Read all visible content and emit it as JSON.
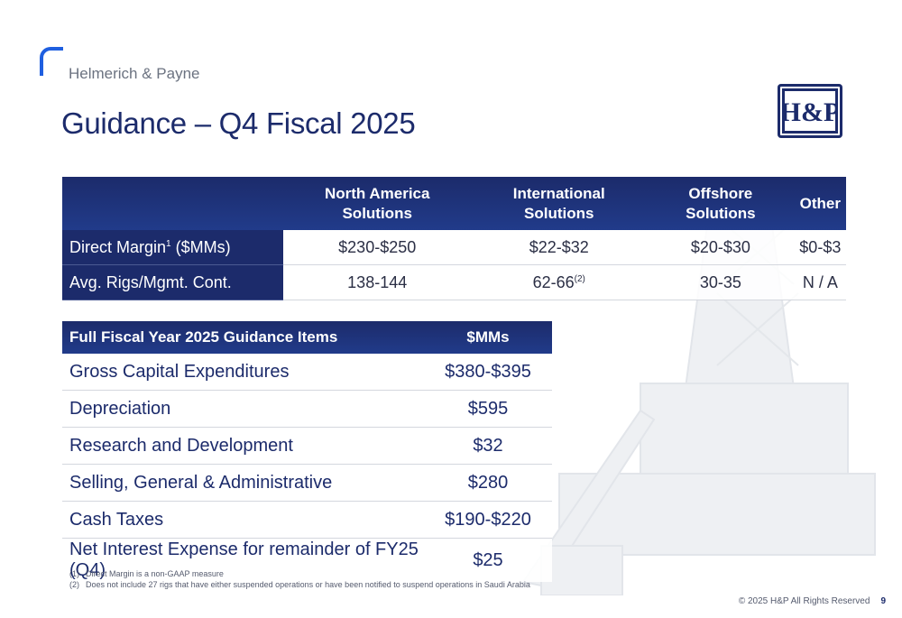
{
  "header": {
    "company": "Helmerich & Payne",
    "title": "Guidance – Q4 Fiscal 2025"
  },
  "logo": {
    "text": "H&P"
  },
  "segment_table": {
    "columns": [
      "North America Solutions",
      "International Solutions",
      "Offshore Solutions",
      "Other"
    ],
    "rows": [
      {
        "label": "Direct Margin",
        "label_sup": "1",
        "label_suffix": " ($MMs)",
        "values": [
          "$230-$250",
          "$22-$32",
          "$20-$30",
          "$0-$3"
        ]
      },
      {
        "label": "Avg. Rigs/Mgmt. Cont.",
        "values": [
          "138-144",
          "62-66",
          "30-35",
          "N / A"
        ],
        "intl_sup": "(2)"
      }
    ]
  },
  "fy_table": {
    "header_item": "Full Fiscal Year 2025 Guidance Items",
    "header_amount": "$MMs",
    "rows": [
      {
        "item": "Gross Capital Expenditures",
        "amount": "$380-$395"
      },
      {
        "item": "Depreciation",
        "amount": "$595"
      },
      {
        "item": "Research and Development",
        "amount": "$32"
      },
      {
        "item": "Selling, General & Administrative",
        "amount": "$280"
      },
      {
        "item": "Cash Taxes",
        "amount": "$190-$220"
      },
      {
        "item": "Net Interest Expense for remainder of FY25 (Q4)",
        "amount": "$25"
      }
    ]
  },
  "footnotes": [
    {
      "num": "(1)",
      "text": "Direct Margin is a non-GAAP measure"
    },
    {
      "num": "(2)",
      "text": "Does not include 27 rigs that have either suspended operations or have been notified to suspend operations in Saudi Arabia"
    }
  ],
  "footer": {
    "copyright": "© 2025 H&P All Rights Reserved",
    "page": "9"
  },
  "colors": {
    "navy": "#1c2b6b",
    "accent": "#1f5fe0"
  }
}
